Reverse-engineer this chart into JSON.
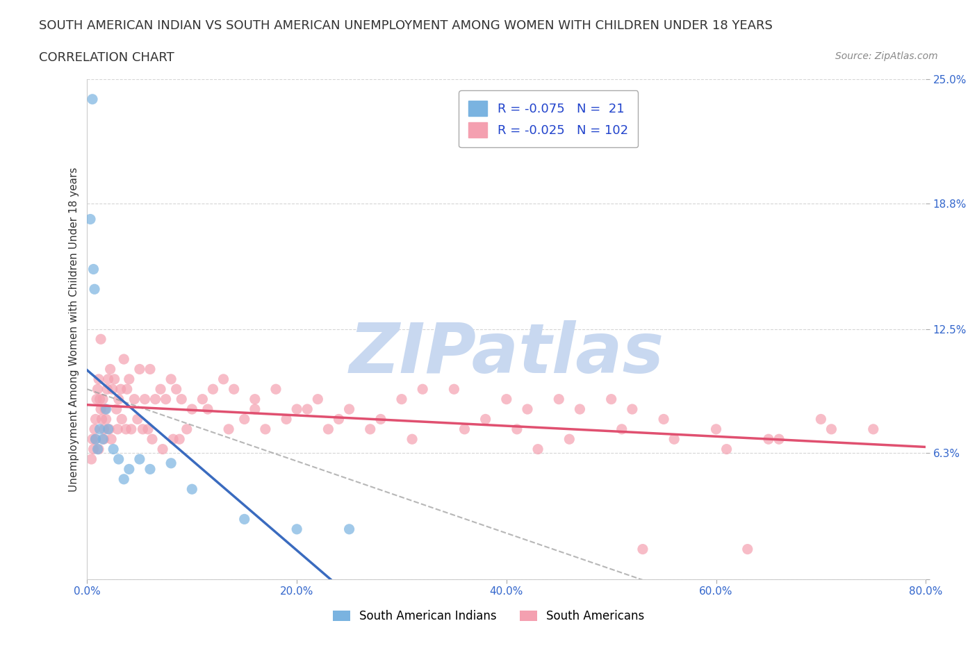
{
  "title": "SOUTH AMERICAN INDIAN VS SOUTH AMERICAN UNEMPLOYMENT AMONG WOMEN WITH CHILDREN UNDER 18 YEARS",
  "subtitle": "CORRELATION CHART",
  "source": "Source: ZipAtlas.com",
  "xlabel": "",
  "ylabel": "Unemployment Among Women with Children Under 18 years",
  "xlim": [
    0.0,
    80.0
  ],
  "ylim": [
    0.0,
    25.0
  ],
  "yticks": [
    0.0,
    6.3,
    12.5,
    18.8,
    25.0
  ],
  "ytick_labels": [
    "",
    "6.3%",
    "12.5%",
    "18.8%",
    "25.0%"
  ],
  "xticks": [
    0.0,
    20.0,
    40.0,
    60.0,
    80.0
  ],
  "xtick_labels": [
    "0.0%",
    "20.0%",
    "40.0%",
    "60.0%",
    "80.0%"
  ],
  "blue_color": "#7ab3e0",
  "pink_color": "#f4a0b0",
  "blue_line_color": "#3a6bbf",
  "pink_line_color": "#e05070",
  "legend_R1": "R = -0.075",
  "legend_N1": "N =  21",
  "legend_R2": "R = -0.025",
  "legend_N2": "N = 102",
  "legend_text_color": "#2244cc",
  "watermark": "ZIPatlas",
  "watermark_color": "#c8d8f0",
  "blue_scatter_x": [
    0.5,
    0.3,
    0.6,
    0.7,
    0.8,
    1.0,
    1.2,
    1.5,
    2.0,
    2.5,
    3.0,
    4.0,
    5.0,
    6.0,
    8.0,
    10.0,
    15.0,
    20.0,
    25.0,
    1.8,
    3.5
  ],
  "blue_scatter_y": [
    24.0,
    18.0,
    15.5,
    14.5,
    7.0,
    6.5,
    7.5,
    7.0,
    7.5,
    6.5,
    6.0,
    5.5,
    6.0,
    5.5,
    5.8,
    4.5,
    3.0,
    2.5,
    2.5,
    8.5,
    5.0
  ],
  "pink_scatter_x": [
    0.5,
    0.6,
    0.7,
    0.8,
    0.9,
    1.0,
    1.1,
    1.2,
    1.3,
    1.4,
    1.5,
    1.6,
    1.7,
    1.8,
    1.9,
    2.0,
    2.2,
    2.4,
    2.6,
    2.8,
    3.0,
    3.2,
    3.5,
    3.8,
    4.0,
    4.5,
    5.0,
    5.5,
    6.0,
    6.5,
    7.0,
    7.5,
    8.0,
    8.5,
    9.0,
    10.0,
    11.0,
    12.0,
    13.0,
    14.0,
    15.0,
    16.0,
    18.0,
    20.0,
    22.0,
    25.0,
    28.0,
    30.0,
    32.0,
    35.0,
    38.0,
    40.0,
    42.0,
    45.0,
    47.0,
    50.0,
    52.0,
    55.0,
    60.0,
    65.0,
    70.0,
    75.0,
    0.4,
    0.8,
    1.1,
    1.6,
    2.1,
    2.9,
    3.3,
    4.2,
    4.8,
    5.3,
    6.2,
    7.2,
    8.2,
    9.5,
    11.5,
    13.5,
    16.0,
    19.0,
    21.0,
    24.0,
    27.0,
    31.0,
    36.0,
    41.0,
    46.0,
    51.0,
    56.0,
    61.0,
    66.0,
    71.0,
    1.3,
    2.3,
    3.7,
    5.8,
    8.8,
    17.0,
    23.0,
    43.0,
    53.0,
    63.0
  ],
  "pink_scatter_y": [
    7.0,
    6.5,
    7.5,
    8.0,
    9.0,
    9.5,
    10.0,
    9.0,
    8.5,
    8.0,
    9.0,
    7.5,
    8.5,
    8.0,
    9.5,
    10.0,
    10.5,
    9.5,
    10.0,
    8.5,
    9.0,
    9.5,
    11.0,
    9.5,
    10.0,
    9.0,
    10.5,
    9.0,
    10.5,
    9.0,
    9.5,
    9.0,
    10.0,
    9.5,
    9.0,
    8.5,
    9.0,
    9.5,
    10.0,
    9.5,
    8.0,
    9.0,
    9.5,
    8.5,
    9.0,
    8.5,
    8.0,
    9.0,
    9.5,
    9.5,
    8.0,
    9.0,
    8.5,
    9.0,
    8.5,
    9.0,
    8.5,
    8.0,
    7.5,
    7.0,
    8.0,
    7.5,
    6.0,
    7.0,
    6.5,
    7.0,
    7.5,
    7.5,
    8.0,
    7.5,
    8.0,
    7.5,
    7.0,
    6.5,
    7.0,
    7.5,
    8.5,
    7.5,
    8.5,
    8.0,
    8.5,
    8.0,
    7.5,
    7.0,
    7.5,
    7.5,
    7.0,
    7.5,
    7.0,
    6.5,
    7.0,
    7.5,
    12.0,
    7.0,
    7.5,
    7.5,
    7.0,
    7.5,
    7.5,
    6.5,
    1.5,
    1.5
  ],
  "background_color": "#ffffff",
  "grid_color": "#cccccc",
  "title_fontsize": 13,
  "subtitle_fontsize": 13,
  "axis_label_fontsize": 11,
  "tick_fontsize": 11,
  "legend_fontsize": 13
}
